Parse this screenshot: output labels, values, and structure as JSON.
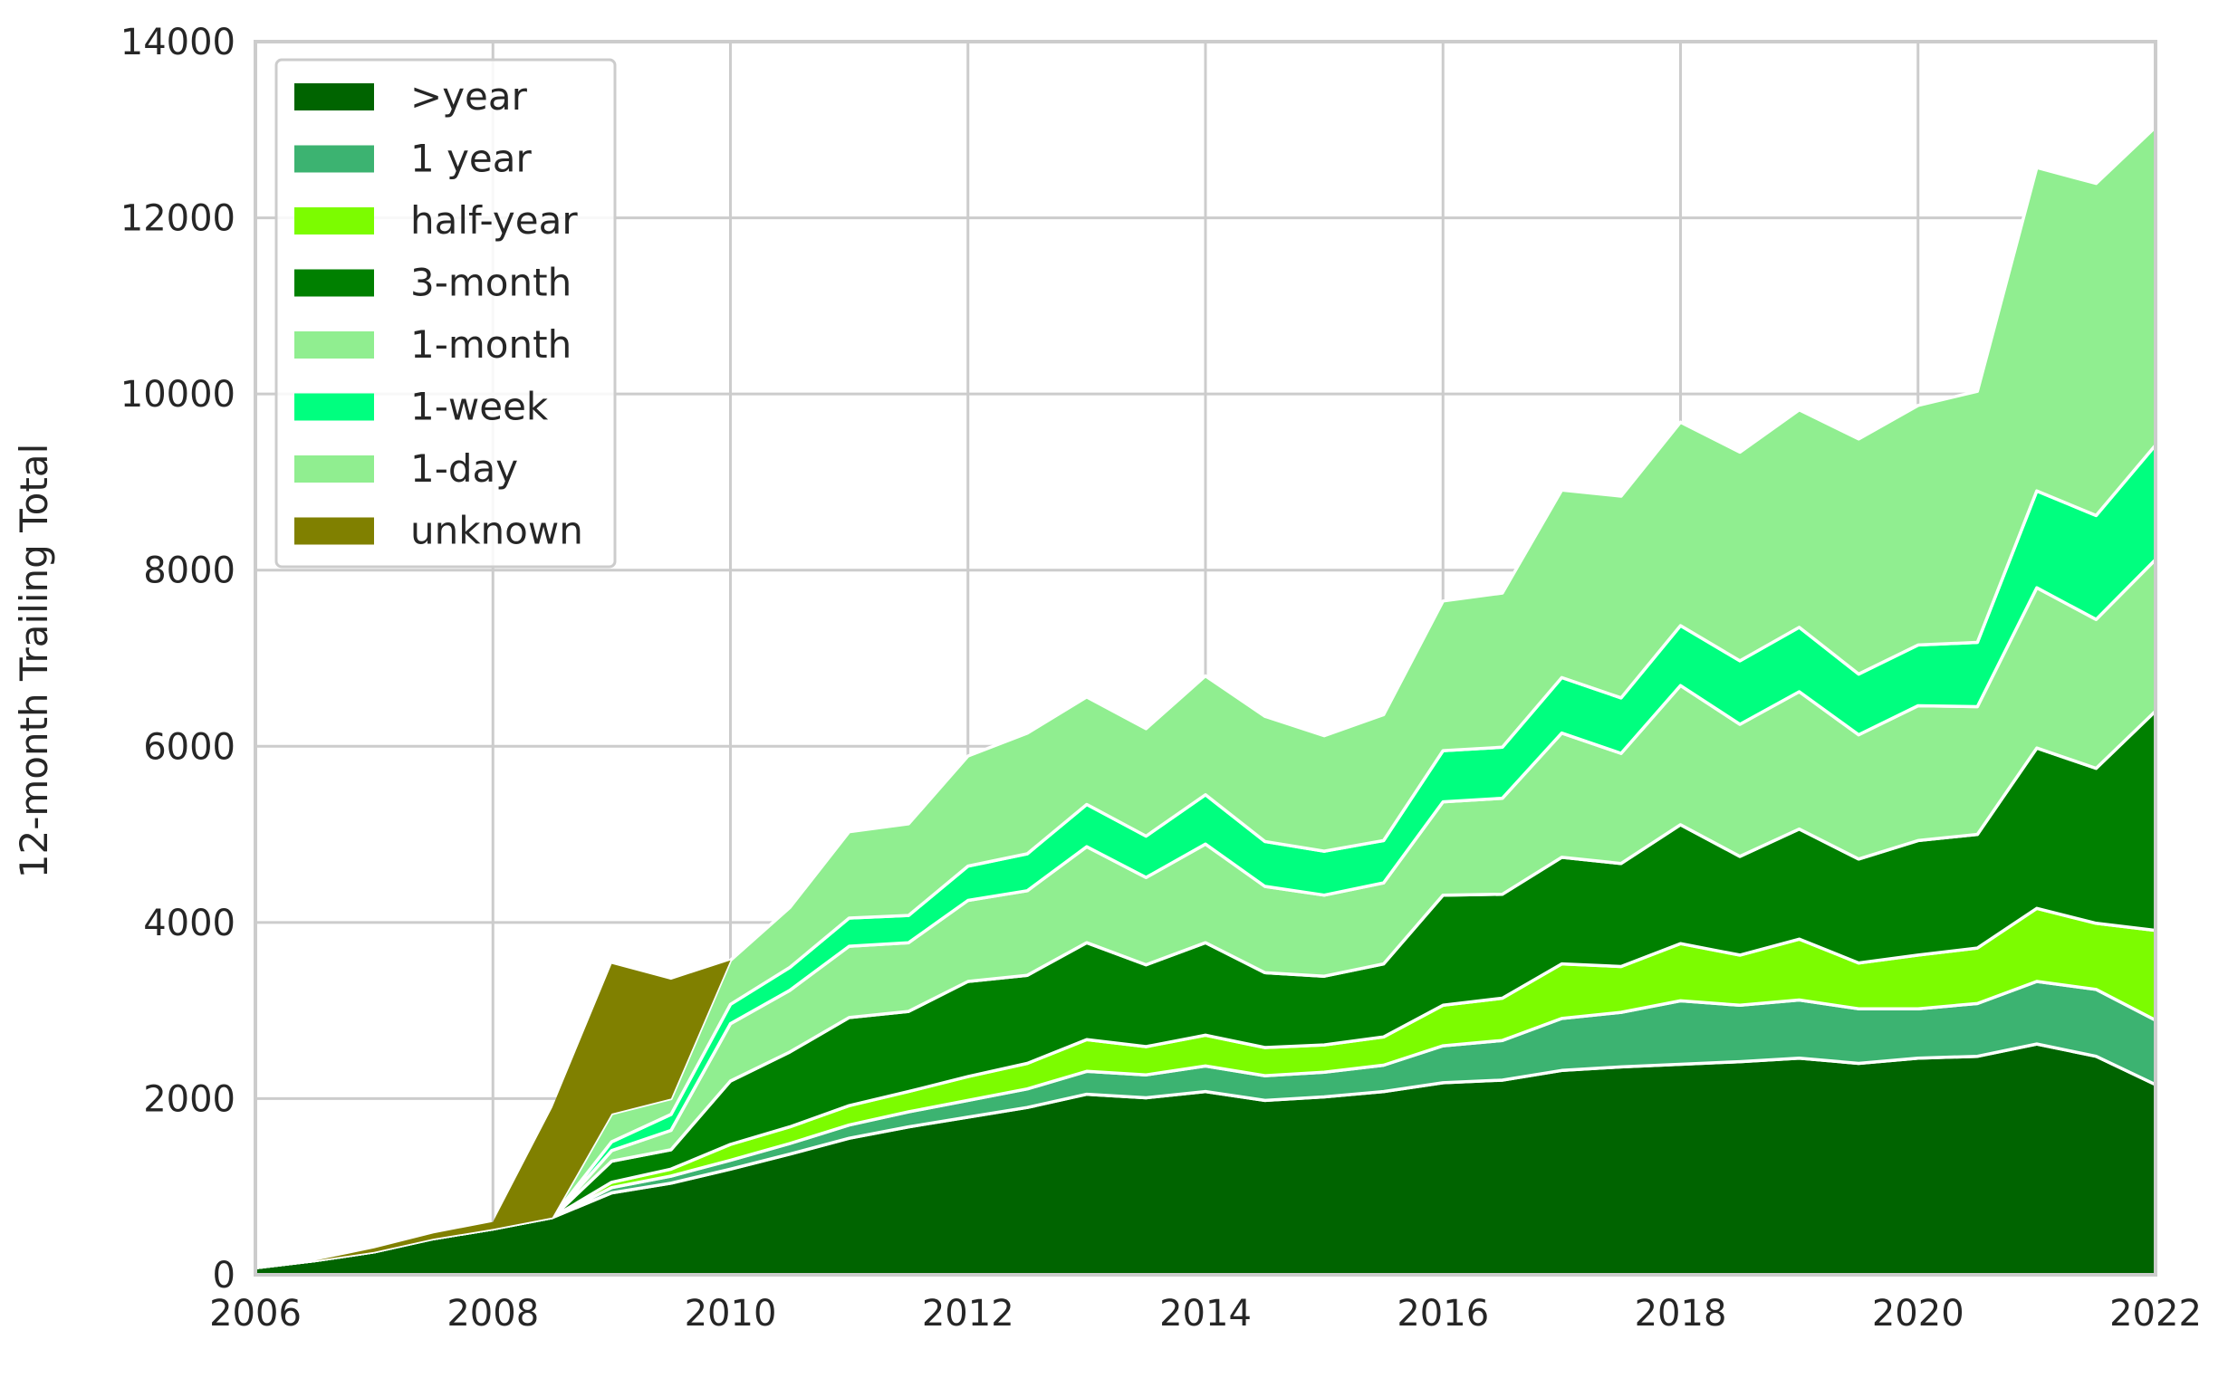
{
  "chart_data": {
    "type": "area",
    "stacked": true,
    "xlabel": "",
    "ylabel": "12-month Trailing Total",
    "xlim": [
      2006,
      2022
    ],
    "ylim": [
      0,
      14000
    ],
    "x_ticks": [
      "2006",
      "2008",
      "2010",
      "2012",
      "2014",
      "2016",
      "2018",
      "2020",
      "2022"
    ],
    "y_ticks": [
      "0",
      "2000",
      "4000",
      "6000",
      "8000",
      "10000",
      "12000",
      "14000"
    ],
    "grid": true,
    "legend_position": "top-left",
    "x": [
      2006,
      2006.5,
      2007,
      2007.5,
      2008,
      2008.5,
      2009,
      2009.5,
      2010,
      2010.5,
      2011,
      2011.5,
      2012,
      2012.5,
      2013,
      2013.5,
      2014,
      2014.5,
      2015,
      2015.5,
      2016,
      2016.5,
      2017,
      2017.5,
      2018,
      2018.5,
      2019,
      2019.5,
      2020,
      2020.5,
      2021,
      2021.5,
      2022
    ],
    "series": [
      {
        "name": ">year",
        "color": "#006400",
        "values": [
          80,
          160,
          260,
          410,
          520,
          650,
          930,
          1040,
          1200,
          1370,
          1550,
          1680,
          1790,
          1900,
          2050,
          2010,
          2080,
          1980,
          2020,
          2080,
          2180,
          2210,
          2320,
          2360,
          2390,
          2420,
          2460,
          2400,
          2460,
          2480,
          2620,
          2480,
          2160
        ]
      },
      {
        "name": "1 year",
        "color": "#3cb371",
        "values": [
          0,
          0,
          0,
          0,
          0,
          0,
          60,
          80,
          100,
          120,
          150,
          170,
          190,
          210,
          260,
          260,
          290,
          280,
          280,
          300,
          420,
          450,
          590,
          620,
          720,
          640,
          660,
          620,
          560,
          600,
          710,
          760,
          730
        ]
      },
      {
        "name": "half-year",
        "color": "#7cfc00",
        "values": [
          0,
          0,
          0,
          0,
          0,
          0,
          60,
          80,
          180,
          190,
          220,
          230,
          270,
          290,
          360,
          320,
          350,
          320,
          310,
          320,
          460,
          480,
          620,
          520,
          650,
          570,
          690,
          520,
          610,
          630,
          830,
          750,
          1020
        ]
      },
      {
        "name": "3-month",
        "color": "#008000",
        "values": [
          0,
          0,
          0,
          0,
          0,
          0,
          240,
          220,
          720,
          850,
          1000,
          910,
          1080,
          1000,
          1100,
          930,
          1050,
          850,
          780,
          830,
          1250,
          1180,
          1210,
          1170,
          1350,
          1120,
          1250,
          1180,
          1300,
          1290,
          1820,
          1760,
          2490
        ]
      },
      {
        "name": "1-month",
        "color": "#90ee90",
        "values": [
          0,
          0,
          0,
          0,
          0,
          0,
          120,
          220,
          650,
          700,
          810,
          780,
          920,
          960,
          1090,
          990,
          1120,
          980,
          920,
          920,
          1060,
          1090,
          1410,
          1250,
          1580,
          1500,
          1560,
          1410,
          1530,
          1450,
          1820,
          1690,
          1720
        ]
      },
      {
        "name": "1-week",
        "color": "#00ff7f",
        "values": [
          0,
          0,
          0,
          0,
          0,
          0,
          100,
          180,
          220,
          260,
          320,
          310,
          390,
          420,
          480,
          470,
          560,
          510,
          500,
          480,
          580,
          580,
          630,
          630,
          680,
          720,
          730,
          690,
          690,
          730,
          1100,
          1180,
          1300
        ]
      },
      {
        "name": "1-day",
        "color": "#90ee90",
        "values": [
          0,
          0,
          0,
          0,
          0,
          0,
          320,
          180,
          500,
          680,
          980,
          1040,
          1250,
          1370,
          1220,
          1220,
          1350,
          1420,
          1310,
          1430,
          1700,
          1750,
          2130,
          2290,
          2310,
          2370,
          2470,
          2670,
          2720,
          2850,
          3670,
          3770,
          3610
        ]
      },
      {
        "name": "unknown",
        "color": "#808000",
        "values": [
          0,
          0,
          40,
          60,
          80,
          1250,
          1700,
          1350,
          0,
          0,
          0,
          0,
          0,
          0,
          0,
          0,
          0,
          0,
          0,
          0,
          0,
          0,
          0,
          0,
          0,
          0,
          0,
          0,
          0,
          0,
          0,
          0,
          0
        ]
      }
    ]
  }
}
